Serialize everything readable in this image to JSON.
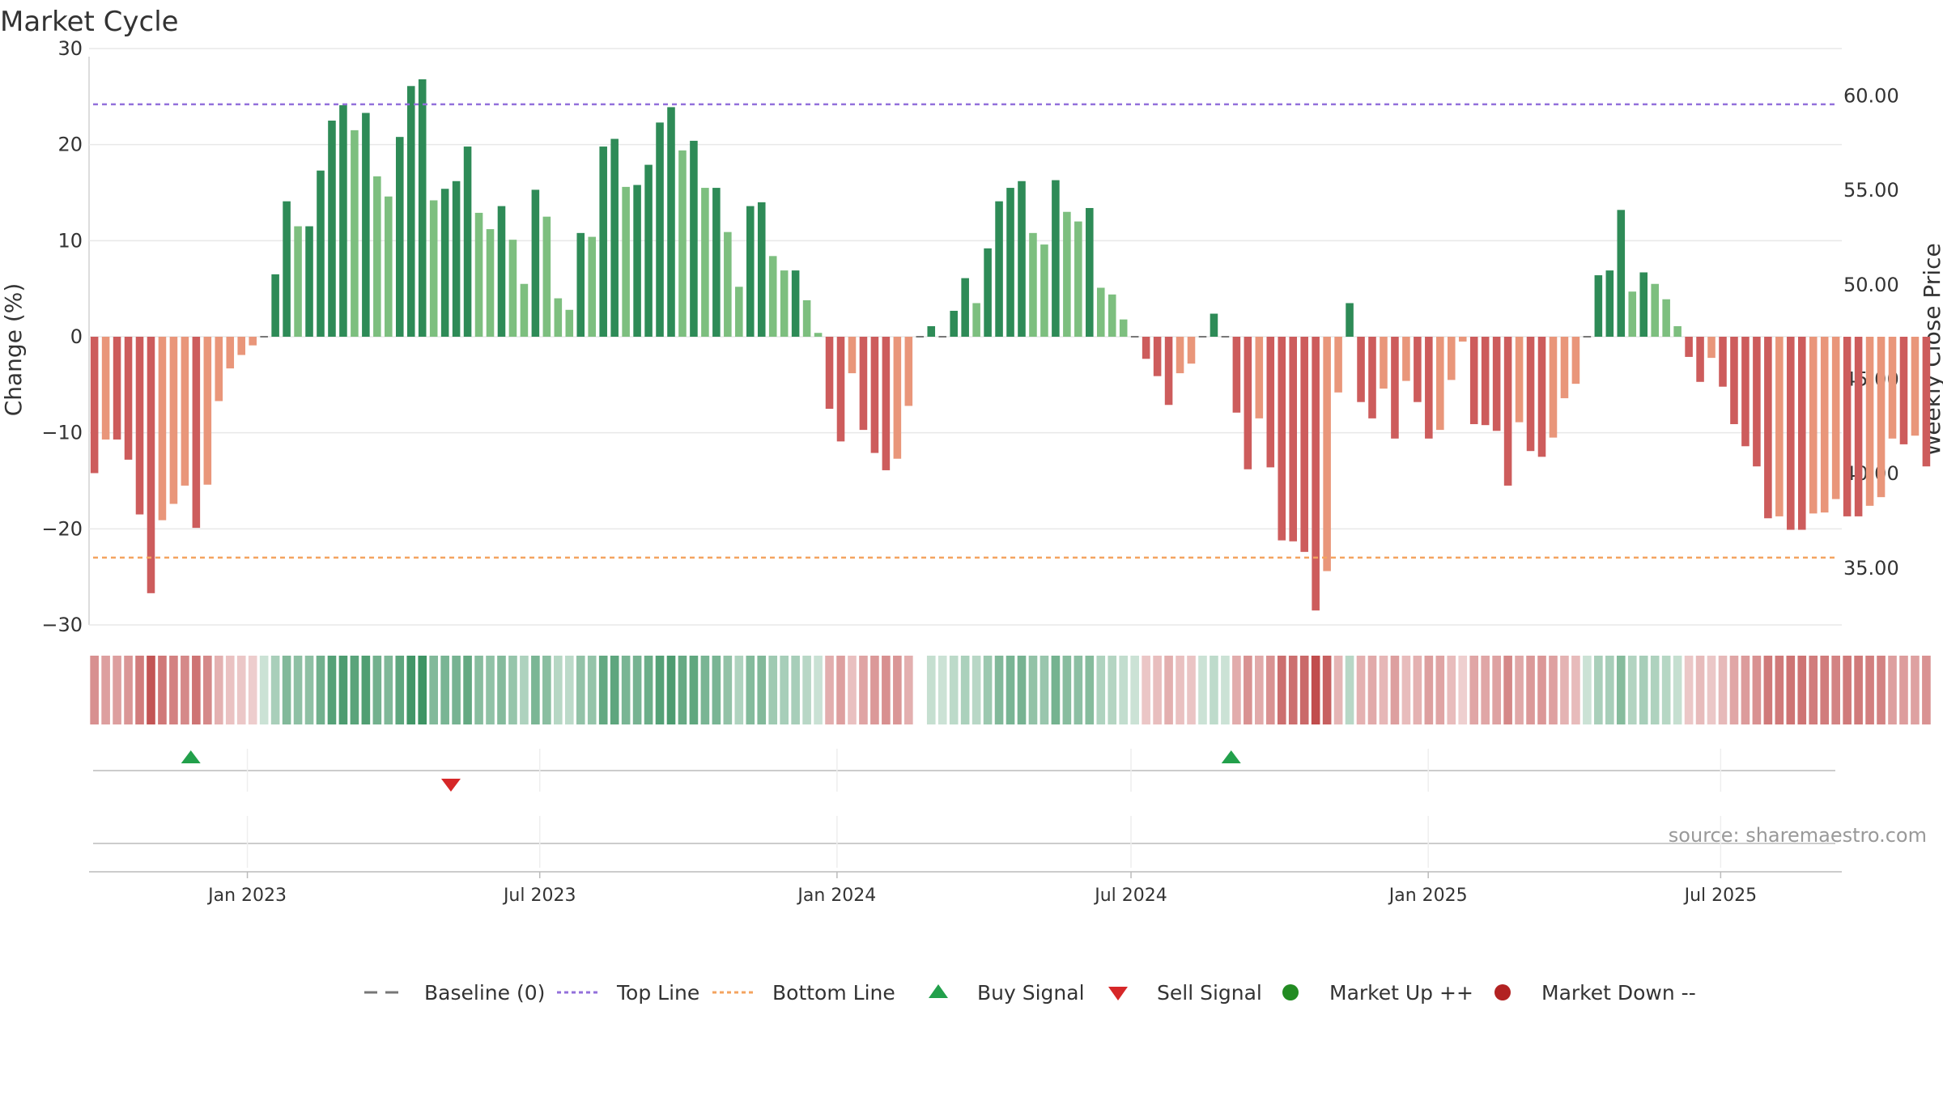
{
  "chart_data": {
    "type": "bar",
    "title": "Market Cycle",
    "ylabel": "Change (%)",
    "y2label": "Weekly Close Price",
    "ylim": [
      -30,
      30
    ],
    "y2lim": [
      32,
      62.5
    ],
    "yticks": [
      "30",
      "20",
      "10",
      "0",
      "−10",
      "−20",
      "−30"
    ],
    "y2ticks": [
      "60.00",
      "55.00",
      "50.00",
      "45.00",
      "40.00",
      "35.00"
    ],
    "xticks": [
      "Jan 2023",
      "Jul 2023",
      "Jan 2024",
      "Jul 2024",
      "Jan 2025",
      "Jul 2025"
    ],
    "x_range": [
      "2022-09-25",
      "2025-09-14"
    ],
    "x_tick_dates": [
      "2023-01-01",
      "2023-07-01",
      "2024-01-01",
      "2024-07-01",
      "2025-01-01",
      "2025-07-01"
    ],
    "top_line": 24.2,
    "bottom_line": -23.0,
    "grid": true,
    "legend_position": "bottom",
    "source": "source: sharemaestro.com",
    "series": [
      {
        "name": "Change (%)",
        "start_week": "2022-09-25",
        "values": [
          -14.2,
          -10.7,
          -10.7,
          -12.8,
          -18.5,
          -26.7,
          -19.1,
          -17.4,
          -15.5,
          -19.9,
          -15.4,
          -6.7,
          -3.3,
          -1.9,
          -0.9,
          0,
          6.5,
          14.1,
          11.5,
          11.5,
          17.3,
          22.5,
          24.1,
          21.5,
          23.3,
          16.7,
          14.6,
          20.8,
          26.1,
          26.8,
          14.2,
          15.4,
          16.2,
          19.8,
          12.9,
          11.2,
          13.6,
          10.1,
          5.5,
          15.3,
          12.5,
          4.0,
          2.8,
          10.8,
          10.4,
          19.8,
          20.6,
          15.6,
          15.8,
          17.9,
          22.3,
          23.9,
          19.4,
          20.4,
          15.5,
          15.5,
          10.9,
          5.2,
          13.6,
          14.0,
          8.4,
          6.9,
          6.9,
          3.8,
          0.4,
          -7.5,
          -10.9,
          -3.8,
          -9.7,
          -12.1,
          -13.9,
          -12.7,
          -7.2,
          0,
          1.1,
          0,
          2.7,
          6.1,
          3.5,
          9.2,
          14.1,
          15.5,
          16.2,
          10.8,
          9.6,
          16.3,
          13.0,
          12.0,
          13.4,
          5.1,
          4.4,
          1.8,
          0,
          -2.3,
          -4.1,
          -7.1,
          -3.8,
          -2.8,
          0,
          2.4,
          0,
          -7.9,
          -13.8,
          -8.5,
          -13.6,
          -21.2,
          -21.3,
          -22.4,
          -28.5,
          -24.4,
          -5.8,
          3.5,
          -6.8,
          -8.5,
          -5.4,
          -10.6,
          -4.6,
          -6.8,
          -10.6,
          -9.7,
          -4.5,
          -0.5,
          -9.1,
          -9.2,
          -9.8,
          -15.5,
          -8.9,
          -11.9,
          -12.5,
          -10.5,
          -6.4,
          -4.9,
          0,
          6.4,
          6.9,
          13.2,
          4.7,
          6.7,
          5.5,
          3.9,
          1.1,
          -2.1,
          -4.7,
          -2.2,
          -5.2,
          -9.1,
          -11.4,
          -13.5,
          -18.9,
          -18.7,
          -20.1,
          -20.1,
          -18.4,
          -18.3,
          -16.9,
          -18.7,
          -18.7,
          -17.6,
          -16.7,
          -10.6,
          -11.2,
          -10.3,
          -13.5
        ]
      }
    ],
    "signals": [
      {
        "type": "Buy Signal",
        "date": "2022-11-27"
      },
      {
        "type": "Sell Signal",
        "date": "2023-05-07"
      },
      {
        "type": "Buy Signal",
        "date": "2024-09-01"
      }
    ],
    "colors": {
      "up_strong": "#2e8b57",
      "up_light": "#7dbf7f",
      "down_strong": "#cd5c5c",
      "down_light": "#e9967a",
      "top_line": "#9370db",
      "bottom_line": "#f4a460",
      "buy": "#22a04b",
      "sell": "#d62728",
      "market_up": "#228b22",
      "market_down": "#b22222"
    },
    "legend": [
      {
        "label": "Baseline (0)",
        "kind": "dash",
        "color": "#777777"
      },
      {
        "label": "Top Line",
        "kind": "dotted",
        "color": "#9370db"
      },
      {
        "label": "Bottom Line",
        "kind": "dotted",
        "color": "#f4a460"
      },
      {
        "label": "Buy Signal",
        "kind": "triangle-up",
        "color": "#22a04b"
      },
      {
        "label": "Sell Signal",
        "kind": "triangle-down",
        "color": "#d62728"
      },
      {
        "label": "Market Up ++",
        "kind": "circle",
        "color": "#228b22"
      },
      {
        "label": "Market Down --",
        "kind": "circle",
        "color": "#b22222"
      }
    ]
  }
}
